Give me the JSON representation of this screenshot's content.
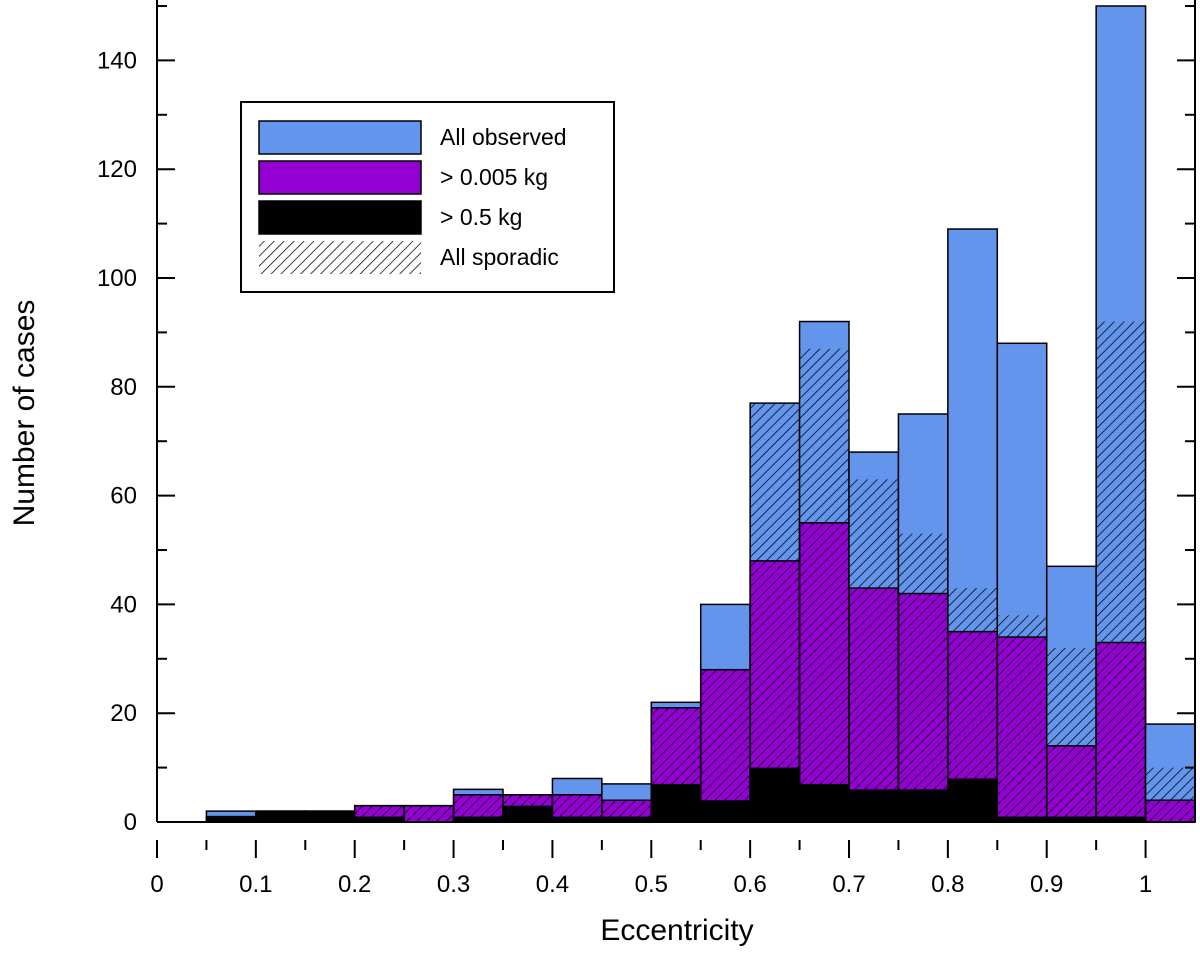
{
  "chart_data": {
    "type": "bar",
    "title": "",
    "xlabel": "Eccentricity",
    "ylabel": "Number of cases",
    "xlim": [
      0,
      1.05
    ],
    "ylim": [
      0,
      150
    ],
    "x_ticks": [
      "0",
      "0.1",
      "0.2",
      "0.3",
      "0.4",
      "0.5",
      "0.6",
      "0.7",
      "0.8",
      "0.9",
      "1"
    ],
    "y_ticks": [
      "0",
      "20",
      "40",
      "60",
      "80",
      "100",
      "120",
      "140"
    ],
    "bin_width": 0.05,
    "bin_starts": [
      0.05,
      0.1,
      0.15,
      0.2,
      0.25,
      0.3,
      0.35,
      0.4,
      0.45,
      0.5,
      0.55,
      0.6,
      0.65,
      0.7,
      0.75,
      0.8,
      0.85,
      0.9,
      0.95,
      1.0
    ],
    "legend_position": "top-left",
    "grid": false,
    "series": [
      {
        "name": "All observed",
        "color": "#6495ED",
        "values": [
          2,
          2,
          2,
          3,
          3,
          6,
          5,
          8,
          7,
          22,
          40,
          77,
          92,
          68,
          75,
          109,
          88,
          47,
          150,
          18
        ]
      },
      {
        "name": "> 0.005 kg",
        "color": "#9400D3",
        "values": [
          1,
          2,
          2,
          3,
          3,
          5,
          5,
          5,
          4,
          21,
          28,
          48,
          55,
          43,
          42,
          35,
          34,
          14,
          33,
          4
        ]
      },
      {
        "name": "> 0.5 kg",
        "color": "#000000",
        "values": [
          1,
          2,
          2,
          1,
          0,
          1,
          3,
          1,
          1,
          7,
          4,
          10,
          7,
          6,
          6,
          8,
          1,
          1,
          1,
          0
        ]
      },
      {
        "name": "All sporadic",
        "pattern": "hatch",
        "values": [
          1,
          2,
          2,
          3,
          3,
          5,
          5,
          5,
          4,
          21,
          28,
          77,
          87,
          63,
          53,
          43,
          38,
          32,
          92,
          10
        ]
      }
    ]
  }
}
